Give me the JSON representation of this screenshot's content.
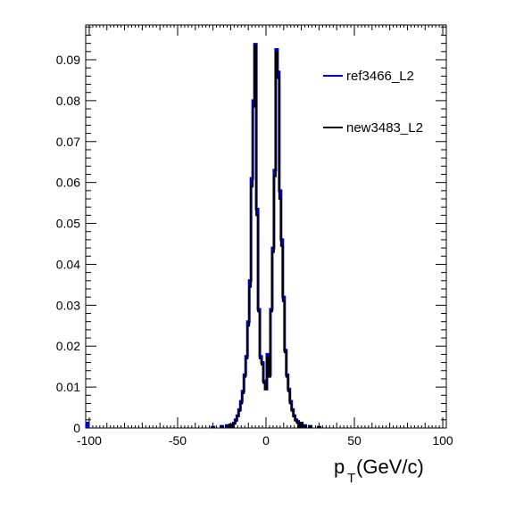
{
  "chart_data": {
    "type": "line",
    "title": "",
    "xlabel_main": "p",
    "xlabel_sub": "T",
    "xlabel_unit": " (GeV/c)",
    "ylabel": "",
    "xlim": [
      -102,
      102
    ],
    "ylim": [
      0,
      0.0985
    ],
    "grid": false,
    "legend_position": "top-right",
    "x_ticks": [
      -100,
      -50,
      0,
      50,
      100
    ],
    "x_tick_labels": [
      "-100",
      "-50",
      "0",
      "50",
      "100"
    ],
    "y_ticks": [
      0,
      0.01,
      0.02,
      0.03,
      0.04,
      0.05,
      0.06,
      0.07,
      0.08,
      0.09
    ],
    "y_tick_labels": [
      "0",
      "0.01",
      "0.02",
      "0.03",
      "0.04",
      "0.05",
      "0.06",
      "0.07",
      "0.08",
      "0.09"
    ],
    "bin_width": 1,
    "series": [
      {
        "name": "ref3466_L2",
        "color": "#0000cc",
        "points": [
          [
            -101,
            0.0012
          ],
          [
            -30,
            0.0002
          ],
          [
            -25,
            0.0004
          ],
          [
            -22,
            0.0006
          ],
          [
            -20,
            0.0008
          ],
          [
            -18,
            0.0012
          ],
          [
            -17,
            0.002
          ],
          [
            -16,
            0.003
          ],
          [
            -15,
            0.0045
          ],
          [
            -14,
            0.0065
          ],
          [
            -13,
            0.009
          ],
          [
            -12,
            0.013
          ],
          [
            -11,
            0.0175
          ],
          [
            -10,
            0.026
          ],
          [
            -9,
            0.036
          ],
          [
            -8,
            0.061
          ],
          [
            -7,
            0.08
          ],
          [
            -6,
            0.0938
          ],
          [
            -5,
            0.0535
          ],
          [
            -4,
            0.029
          ],
          [
            -3,
            0.0175
          ],
          [
            -2,
            0.016
          ],
          [
            -1,
            0.0115
          ],
          [
            0,
            0.0095
          ],
          [
            1,
            0.018
          ],
          [
            2,
            0.013
          ],
          [
            3,
            0.029
          ],
          [
            4,
            0.044
          ],
          [
            5,
            0.063
          ],
          [
            6,
            0.0925
          ],
          [
            7,
            0.087
          ],
          [
            8,
            0.058
          ],
          [
            9,
            0.046
          ],
          [
            10,
            0.032
          ],
          [
            11,
            0.019
          ],
          [
            12,
            0.013
          ],
          [
            13,
            0.0095
          ],
          [
            14,
            0.0065
          ],
          [
            15,
            0.0045
          ],
          [
            16,
            0.003
          ],
          [
            17,
            0.002
          ],
          [
            18,
            0.0016
          ],
          [
            20,
            0.0012
          ],
          [
            22,
            0.0006
          ],
          [
            25,
            0.0004
          ],
          [
            30,
            0.0002
          ]
        ]
      },
      {
        "name": "new3483_L2",
        "color": "#000000",
        "points": [
          [
            -30,
            0.0002
          ],
          [
            -25,
            0.0003
          ],
          [
            -22,
            0.0005
          ],
          [
            -20,
            0.0007
          ],
          [
            -18,
            0.001
          ],
          [
            -17,
            0.0017
          ],
          [
            -16,
            0.0028
          ],
          [
            -15,
            0.0042
          ],
          [
            -14,
            0.006
          ],
          [
            -13,
            0.0085
          ],
          [
            -12,
            0.0125
          ],
          [
            -11,
            0.017
          ],
          [
            -10,
            0.025
          ],
          [
            -9,
            0.0345
          ],
          [
            -8,
            0.059
          ],
          [
            -7,
            0.0785
          ],
          [
            -6,
            0.0935
          ],
          [
            -5,
            0.052
          ],
          [
            -4,
            0.0285
          ],
          [
            -3,
            0.017
          ],
          [
            -2,
            0.0155
          ],
          [
            -1,
            0.011
          ],
          [
            0,
            0.0095
          ],
          [
            1,
            0.0175
          ],
          [
            2,
            0.0125
          ],
          [
            3,
            0.0285
          ],
          [
            4,
            0.043
          ],
          [
            5,
            0.0615
          ],
          [
            6,
            0.092
          ],
          [
            7,
            0.0855
          ],
          [
            8,
            0.056
          ],
          [
            9,
            0.0445
          ],
          [
            10,
            0.031
          ],
          [
            11,
            0.0185
          ],
          [
            12,
            0.0125
          ],
          [
            13,
            0.009
          ],
          [
            14,
            0.006
          ],
          [
            15,
            0.0042
          ],
          [
            16,
            0.0028
          ],
          [
            17,
            0.0018
          ],
          [
            18,
            0.0012
          ],
          [
            20,
            0.001
          ],
          [
            22,
            0.0005
          ],
          [
            25,
            0.0003
          ],
          [
            30,
            0.0002
          ]
        ]
      }
    ]
  }
}
